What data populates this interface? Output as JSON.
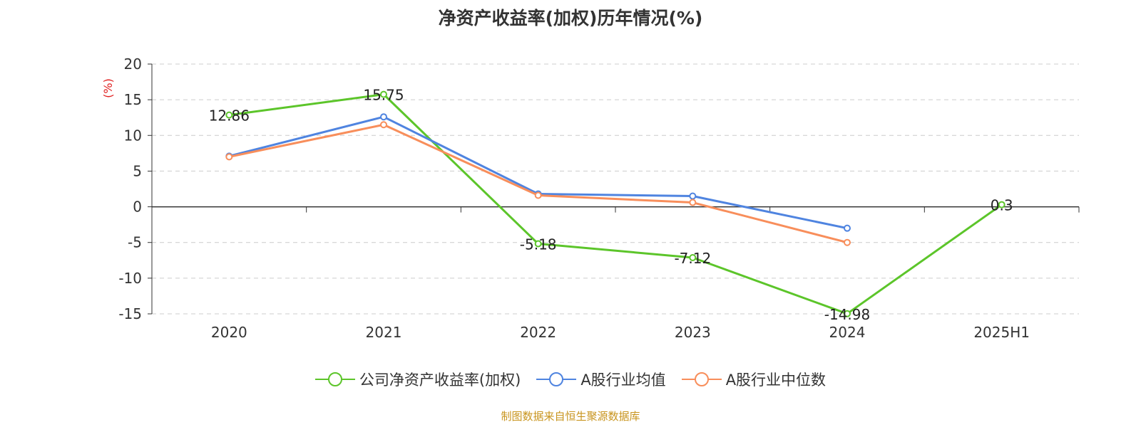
{
  "chart_data": {
    "type": "line",
    "title": "净资产收益率(加权)历年情况(%)",
    "ylabel": "(%)",
    "xlabel": "",
    "categories": [
      "2020",
      "2021",
      "2022",
      "2023",
      "2024",
      "2025H1"
    ],
    "ylim": [
      -15,
      20
    ],
    "yticks": [
      20,
      15,
      10,
      5,
      0,
      -5,
      -10,
      -15
    ],
    "grid": true,
    "legend_position": "bottom",
    "series": [
      {
        "name": "公司净资产收益率(加权)",
        "color": "#5cc52a",
        "values": [
          12.86,
          15.75,
          -5.18,
          -7.12,
          -14.98,
          0.3
        ],
        "labels": [
          "12.86",
          "15.75",
          "-5.18",
          "-7.12",
          "-14.98",
          "0.3"
        ]
      },
      {
        "name": "A股行业均值",
        "color": "#4f84e0",
        "values": [
          7.1,
          12.6,
          1.8,
          1.5,
          -3.0,
          null
        ]
      },
      {
        "name": "A股行业中位数",
        "color": "#f88e5b",
        "values": [
          7.0,
          11.5,
          1.6,
          0.6,
          -5.0,
          null
        ]
      }
    ]
  },
  "footer": {
    "source": "制图数据来自恒生聚源数据库"
  }
}
